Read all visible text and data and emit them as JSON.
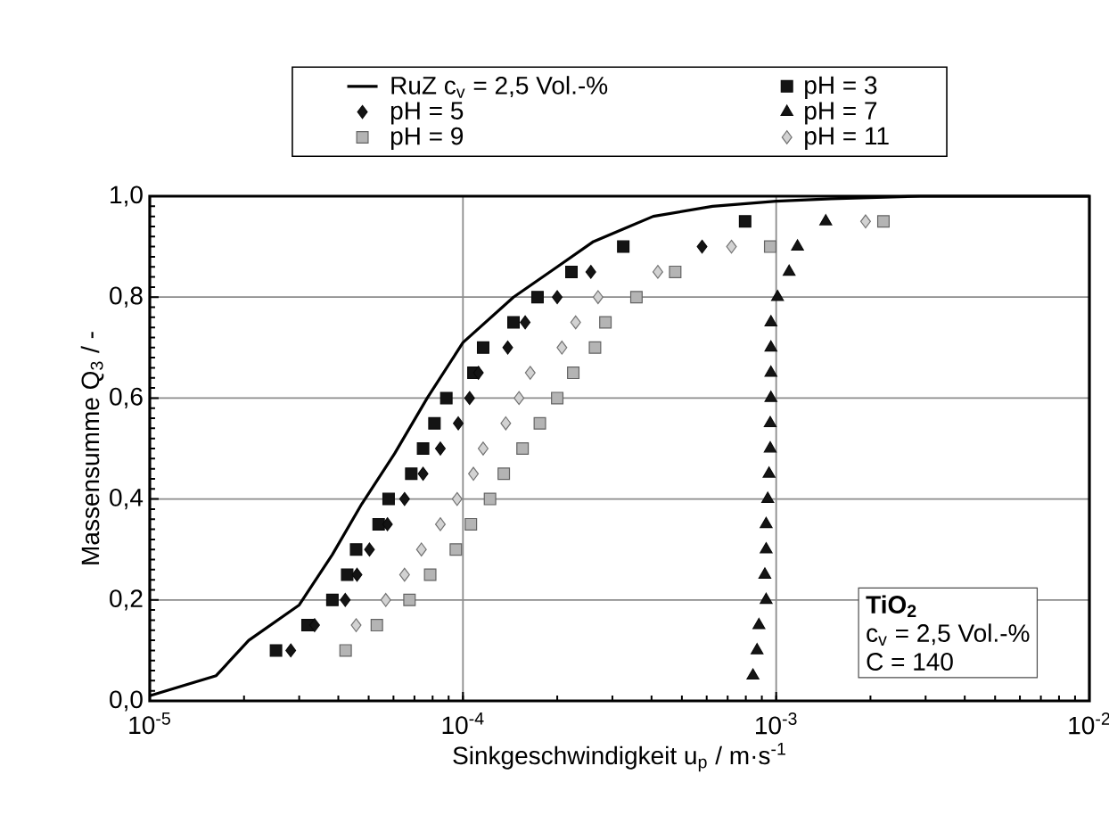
{
  "chart_data": {
    "type": "scatter",
    "xlabel": "Sinkgeschwindigkeit u$_{p}$ / m·s$^{-1}$",
    "ylabel": "Massensumme Q$_{3}$ / -",
    "log": "x",
    "grid": true,
    "legend": "top",
    "xlim": [
      1e-05,
      0.01
    ],
    "xticks": [
      {
        "value": 1e-05,
        "label": "10$^{-5}$"
      },
      {
        "value": 0.0001,
        "label": "10$^{-4}$"
      },
      {
        "value": 0.001,
        "label": "10$^{-3}$"
      },
      {
        "value": 0.01,
        "label": "10$^{-2}$"
      }
    ],
    "ylim": [
      0,
      1
    ],
    "yticks": [
      {
        "value": 0,
        "label": "0,0"
      },
      {
        "value": 0.2,
        "label": "0,2"
      },
      {
        "value": 0.4,
        "label": "0,4"
      },
      {
        "value": 0.6,
        "label": "0,6"
      },
      {
        "value": 0.8,
        "label": "0,8"
      },
      {
        "value": 1,
        "label": "1,0"
      }
    ],
    "annotations": [
      "TiO$_{2}$",
      "c$_{v}$ = 2,5 Vol.-%",
      "C = 140"
    ],
    "series": [
      {
        "name": "RuZ c$_{v}$ = 2,5 Vol.-%",
        "type": "line",
        "color": "#000000",
        "marker": "none",
        "line_style": "solid",
        "x": [
          1e-05,
          1.63e-05,
          2.07e-05,
          3e-05,
          3.83e-05,
          4.75e-05,
          6.05e-05,
          7.69e-05,
          0.0001,
          0.000145,
          0.0002,
          0.000261,
          0.000405,
          0.000626,
          0.001,
          0.0015,
          0.00289,
          0.01
        ],
        "values": [
          0.01,
          0.05,
          0.12,
          0.19,
          0.29,
          0.39,
          0.49,
          0.6,
          0.71,
          0.8,
          0.86,
          0.91,
          0.96,
          0.98,
          0.99,
          0.995,
          1.0,
          1.0
        ]
      },
      {
        "name": "pH = 3",
        "color": "#141414",
        "marker": "square",
        "x": [
          2.53e-05,
          3.19e-05,
          3.83e-05,
          4.27e-05,
          4.56e-05,
          5.38e-05,
          5.79e-05,
          6.84e-05,
          7.46e-05,
          8.11e-05,
          8.85e-05,
          0.000108,
          0.000116,
          0.000145,
          0.000173,
          0.000222,
          0.000325,
          0.000796
        ],
        "values": [
          0.1,
          0.15,
          0.2,
          0.25,
          0.3,
          0.35,
          0.4,
          0.45,
          0.5,
          0.55,
          0.6,
          0.65,
          0.7,
          0.75,
          0.8,
          0.85,
          0.9,
          0.95
        ]
      },
      {
        "name": "pH = 5",
        "color": "#141414",
        "marker": "diamond",
        "x": [
          2.82e-05,
          3.36e-05,
          4.21e-05,
          4.59e-05,
          5.03e-05,
          5.74e-05,
          6.51e-05,
          7.46e-05,
          8.47e-05,
          9.66e-05,
          0.000105,
          0.000112,
          0.000139,
          0.000158,
          0.0002,
          0.000256,
          0.00058
        ],
        "values": [
          0.1,
          0.15,
          0.2,
          0.25,
          0.3,
          0.35,
          0.4,
          0.45,
          0.5,
          0.55,
          0.6,
          0.65,
          0.7,
          0.75,
          0.8,
          0.85,
          0.9
        ]
      },
      {
        "name": "pH = 7",
        "color": "#141414",
        "marker": "triangle",
        "x": [
          0.000843,
          0.000869,
          0.000881,
          0.000929,
          0.00092,
          0.000929,
          0.000929,
          0.00094,
          0.000949,
          0.000957,
          0.000957,
          0.000962,
          0.000962,
          0.000962,
          0.000962,
          0.00101,
          0.0011,
          0.00117,
          0.00144
        ],
        "values": [
          0.05,
          0.1,
          0.15,
          0.2,
          0.25,
          0.3,
          0.35,
          0.4,
          0.45,
          0.5,
          0.55,
          0.6,
          0.65,
          0.7,
          0.75,
          0.8,
          0.85,
          0.9,
          0.95
        ]
      },
      {
        "name": "pH = 9",
        "color": "#b4b4b4",
        "marker": "square",
        "x": [
          4.22e-05,
          5.31e-05,
          6.75e-05,
          7.86e-05,
          9.49e-05,
          0.000106,
          0.000122,
          0.000135,
          0.000155,
          0.000176,
          0.0002,
          0.000225,
          0.000264,
          0.000285,
          0.000358,
          0.000476,
          0.000957,
          0.0022
        ],
        "values": [
          0.1,
          0.15,
          0.2,
          0.25,
          0.3,
          0.35,
          0.4,
          0.45,
          0.5,
          0.55,
          0.6,
          0.65,
          0.7,
          0.75,
          0.8,
          0.85,
          0.9,
          0.95
        ]
      },
      {
        "name": "pH = 11",
        "color": "#d2d2d2",
        "marker": "diamond",
        "x": [
          4.56e-05,
          5.67e-05,
          6.51e-05,
          7.37e-05,
          8.47e-05,
          9.58e-05,
          0.000108,
          0.000116,
          0.000137,
          0.000151,
          0.000164,
          0.000207,
          0.000229,
          0.00027,
          0.000419,
          0.00072,
          0.00193
        ],
        "values": [
          0.15,
          0.2,
          0.25,
          0.3,
          0.35,
          0.4,
          0.45,
          0.5,
          0.55,
          0.6,
          0.65,
          0.7,
          0.75,
          0.8,
          0.85,
          0.9,
          0.95
        ]
      }
    ]
  }
}
